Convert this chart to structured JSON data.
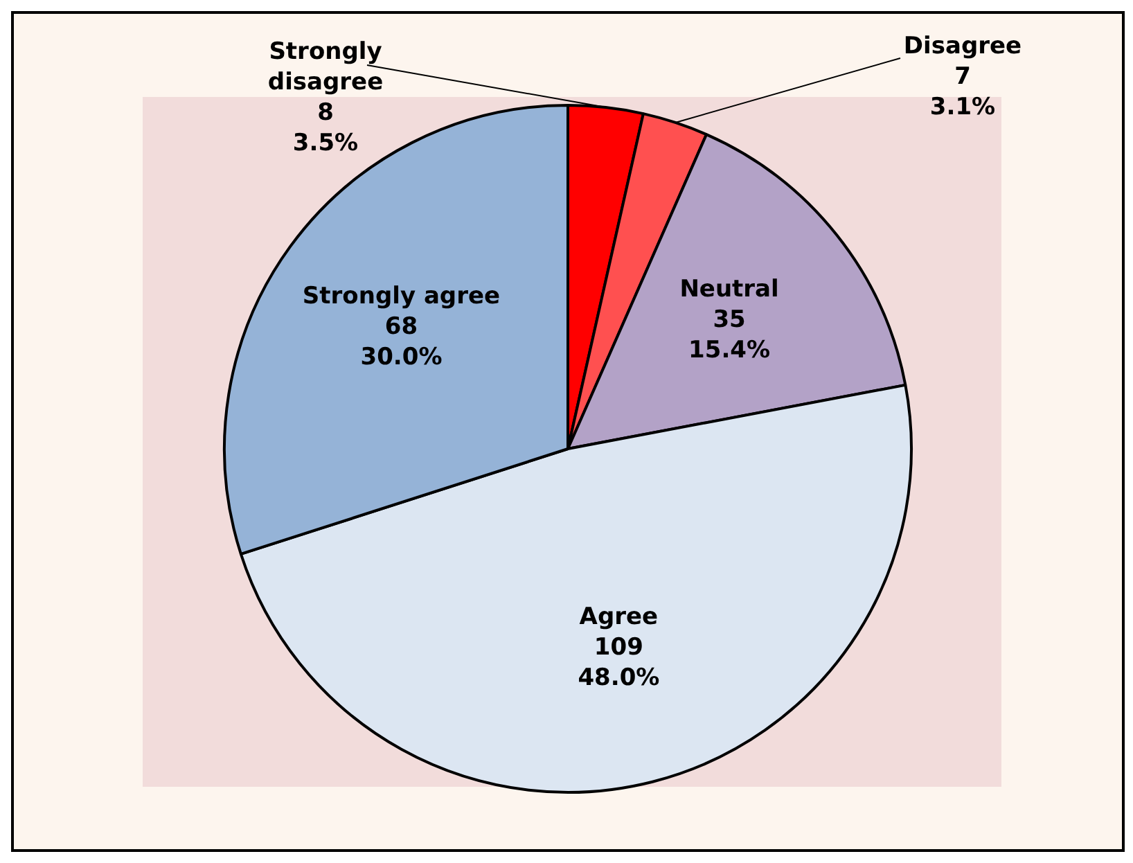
{
  "chart_data": {
    "type": "pie",
    "categories": [
      "Strongly disagree",
      "Disagree",
      "Neutral",
      "Agree",
      "Strongly agree"
    ],
    "values": [
      8,
      7,
      35,
      109,
      68
    ],
    "colors": [
      "#ff0000",
      "#ff5050",
      "#b3a2c7",
      "#dce6f2",
      "#95b3d7"
    ],
    "value_labels": [
      "8\n3.5%",
      "7\n3.1%",
      "35\n15.4%",
      "109\n48.0%",
      "68\n30.0%"
    ]
  }
}
